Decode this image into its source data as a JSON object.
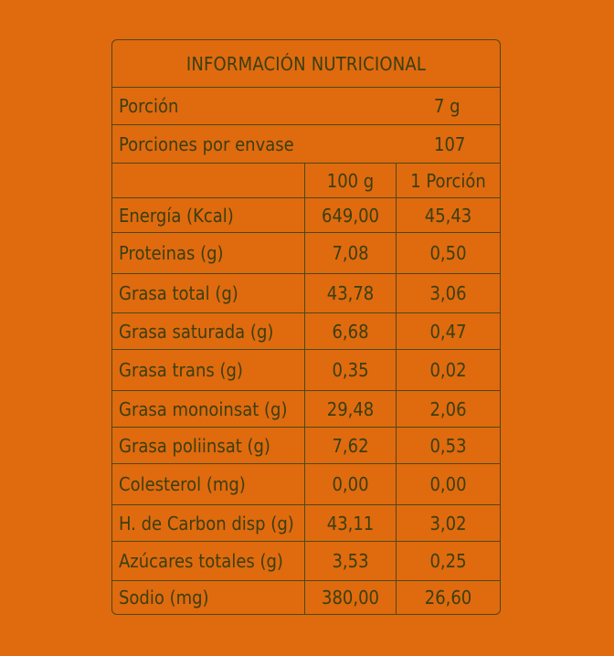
{
  "table": {
    "title": "INFORMACIÓN NUTRICIONAL",
    "portion": {
      "label": "Porción",
      "value": "7 g"
    },
    "servings": {
      "label": "Porciones por envase",
      "value": "107"
    },
    "headers": {
      "per100": "100 g",
      "perPortion": "1 Porción"
    },
    "rows": [
      {
        "label": "Energía (Kcal)",
        "per100": "649,00",
        "perPortion": "45,43"
      },
      {
        "label": "Proteinas (g)",
        "per100": "7,08",
        "perPortion": "0,50"
      },
      {
        "label": "Grasa total (g)",
        "per100": "43,78",
        "perPortion": "3,06"
      },
      {
        "label": "Grasa saturada (g)",
        "per100": "6,68",
        "perPortion": "0,47"
      },
      {
        "label": "Grasa trans (g)",
        "per100": "0,35",
        "perPortion": "0,02"
      },
      {
        "label": "Grasa monoinsat (g)",
        "per100": "29,48",
        "perPortion": "2,06"
      },
      {
        "label": "Grasa poliinsat (g)",
        "per100": "7,62",
        "perPortion": "0,53"
      },
      {
        "label": "Colesterol (mg)",
        "per100": "0,00",
        "perPortion": "0,00"
      },
      {
        "label": "H. de Carbon disp (g)",
        "per100": "43,11",
        "perPortion": "3,02"
      },
      {
        "label": "Azúcares totales (g)",
        "per100": "3,53",
        "perPortion": "0,25"
      },
      {
        "label": "Sodio (mg)",
        "per100": "380,00",
        "perPortion": "26,60"
      }
    ]
  }
}
